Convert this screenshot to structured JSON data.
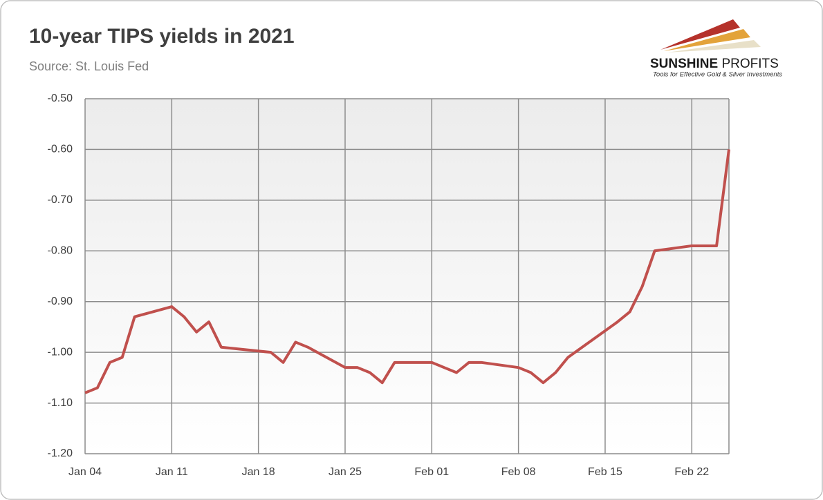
{
  "chart_data": {
    "type": "line",
    "title": "10-year TIPS yields in 2021",
    "subtitle": "Source: St. Louis Fed",
    "x": [
      "Jan 04",
      "Jan 05",
      "Jan 06",
      "Jan 07",
      "Jan 08",
      "Jan 11",
      "Jan 12",
      "Jan 13",
      "Jan 14",
      "Jan 15",
      "Jan 19",
      "Jan 20",
      "Jan 21",
      "Jan 22",
      "Jan 25",
      "Jan 26",
      "Jan 27",
      "Jan 28",
      "Jan 29",
      "Feb 01",
      "Feb 02",
      "Feb 03",
      "Feb 04",
      "Feb 05",
      "Feb 08",
      "Feb 09",
      "Feb 10",
      "Feb 11",
      "Feb 12",
      "Feb 16",
      "Feb 17",
      "Feb 18",
      "Feb 19",
      "Feb 22",
      "Feb 23",
      "Feb 24",
      "Feb 25"
    ],
    "values": [
      -1.08,
      -1.07,
      -1.02,
      -1.01,
      -0.93,
      -0.91,
      -0.93,
      -0.96,
      -0.94,
      -0.99,
      -1.0,
      -1.02,
      -0.98,
      -0.99,
      -1.03,
      -1.03,
      -1.04,
      -1.06,
      -1.02,
      -1.02,
      -1.03,
      -1.04,
      -1.02,
      -1.02,
      -1.03,
      -1.04,
      -1.06,
      -1.04,
      -1.01,
      -0.94,
      -0.92,
      -0.87,
      -0.8,
      -0.79,
      -0.79,
      -0.79,
      -0.6
    ],
    "color": "#c0504d",
    "xlim": [
      "Jan 04",
      "Feb 25"
    ],
    "xticks": [
      "Jan 04",
      "Jan 11",
      "Jan 18",
      "Jan 25",
      "Feb 01",
      "Feb 08",
      "Feb 15",
      "Feb 22"
    ],
    "ylim": [
      -1.2,
      -0.5
    ],
    "yticks": [
      {
        "value": -1.2,
        "label": "-1.20"
      },
      {
        "value": -1.1,
        "label": "-1.10"
      },
      {
        "value": -1.0,
        "label": "-1.00"
      },
      {
        "value": -0.9,
        "label": "-0.90"
      },
      {
        "value": -0.8,
        "label": "-0.80"
      },
      {
        "value": -0.7,
        "label": "-0.70"
      },
      {
        "value": -0.6,
        "label": "-0.60"
      },
      {
        "value": -0.5,
        "label": "-0.50"
      }
    ],
    "grid": true
  },
  "logo": {
    "brand_bold": "SUNSHINE",
    "brand": "PROFITS",
    "tagline": "Tools for Effective Gold & Silver Investments"
  }
}
